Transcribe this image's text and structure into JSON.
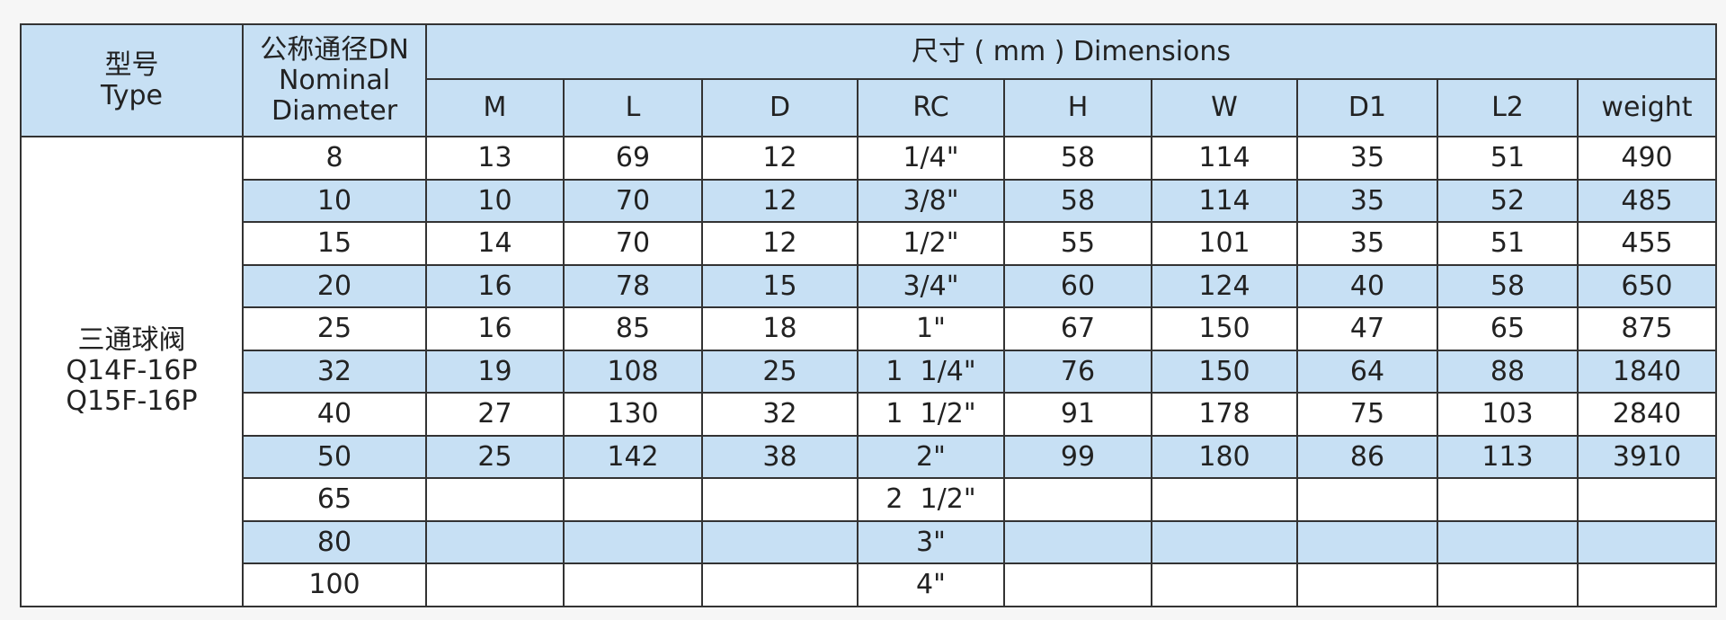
{
  "header": {
    "type_lines": [
      "型号",
      "Type"
    ],
    "dn_lines": [
      "公称通径DN",
      "Nominal",
      "Diameter"
    ],
    "dimensions_title": "尺寸 ( mm ) Dimensions",
    "columns": [
      "M",
      "L",
      "D",
      "RC",
      "H",
      "W",
      "D1",
      "L2",
      "weight"
    ]
  },
  "product_lines": [
    "三通球阀",
    "Q14F-16P",
    "Q15F-16P"
  ],
  "table": {
    "rows": [
      [
        8,
        13,
        69,
        12,
        "1/4\"",
        58,
        114,
        35,
        51,
        490
      ],
      [
        10,
        10,
        70,
        12,
        "3/8\"",
        58,
        114,
        35,
        52,
        485
      ],
      [
        15,
        14,
        70,
        12,
        "1/2\"",
        55,
        101,
        35,
        51,
        455
      ],
      [
        20,
        16,
        78,
        15,
        "3/4\"",
        60,
        124,
        40,
        58,
        650
      ],
      [
        25,
        16,
        85,
        18,
        "1\"",
        67,
        150,
        47,
        65,
        875
      ],
      [
        32,
        19,
        108,
        25,
        "1  1/4\"",
        76,
        150,
        64,
        88,
        1840
      ],
      [
        40,
        27,
        130,
        32,
        "1  1/2\"",
        91,
        178,
        75,
        103,
        2840
      ],
      [
        50,
        25,
        142,
        38,
        "2\"",
        99,
        180,
        86,
        113,
        3910
      ],
      [
        65,
        null,
        null,
        null,
        "2  1/2\"",
        null,
        null,
        null,
        null,
        null
      ],
      [
        80,
        null,
        null,
        null,
        "3\"",
        null,
        null,
        null,
        null,
        null
      ],
      [
        100,
        null,
        null,
        null,
        "4\"",
        null,
        null,
        null,
        null,
        null
      ]
    ]
  }
}
